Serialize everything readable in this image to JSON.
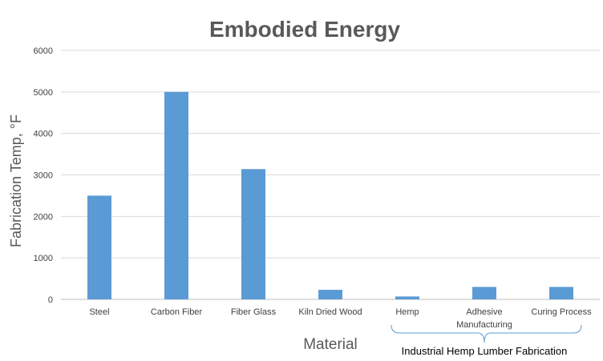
{
  "chart_data": {
    "type": "bar",
    "title": "Embodied Energy",
    "xlabel": "Material",
    "ylabel": "Fabrication Temp, °F",
    "categories": [
      "Steel",
      "Carbon Fiber",
      "Fiber Glass",
      "Kiln Dried Wood",
      "Hemp",
      "Adhesive Manufacturing",
      "Curing Process"
    ],
    "category_lines": [
      [
        "Steel"
      ],
      [
        "Carbon Fiber"
      ],
      [
        "Fiber Glass"
      ],
      [
        "Kiln Dried Wood"
      ],
      [
        "Hemp"
      ],
      [
        "Adhesive",
        "Manufacturing"
      ],
      [
        "Curing Process"
      ]
    ],
    "values": [
      2500,
      5000,
      3140,
      230,
      70,
      300,
      300
    ],
    "ylim": [
      0,
      6000
    ],
    "yticks": [
      "0",
      "1000",
      "2000",
      "3000",
      "4000",
      "5000",
      "6000"
    ],
    "grid": true,
    "legend": "none",
    "bar_color": "#5B9BD5",
    "annotation": {
      "text": "Industrial Hemp Lumber Fabrication",
      "spans_categories": [
        "Hemp",
        "Adhesive Manufacturing",
        "Curing Process"
      ]
    }
  },
  "colors": {
    "grid": "#D9D9D9",
    "bracket": "#5B9BD5",
    "title": "#595959"
  }
}
